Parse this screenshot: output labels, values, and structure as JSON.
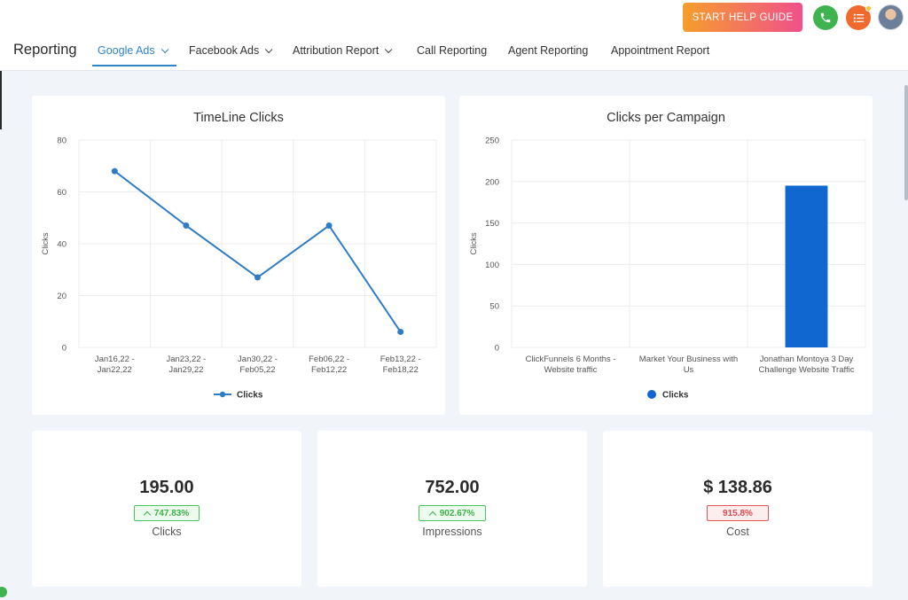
{
  "header": {
    "help_button_label": "START HELP GUIDE",
    "phone_icon": "phone-icon",
    "list_icon": "list-icon",
    "accent_gradient": [
      "#f59e2c",
      "#f0508a"
    ]
  },
  "nav": {
    "title": "Reporting",
    "tabs": [
      {
        "label": "Google Ads",
        "dropdown": true,
        "active": true
      },
      {
        "label": "Facebook Ads",
        "dropdown": true,
        "active": false
      },
      {
        "label": "Attribution Report",
        "dropdown": true,
        "active": false
      },
      {
        "label": "Call Reporting",
        "dropdown": false,
        "active": false
      },
      {
        "label": "Agent Reporting",
        "dropdown": false,
        "active": false
      },
      {
        "label": "Appointment Report",
        "dropdown": false,
        "active": false
      }
    ],
    "accent_color": "#2f84c8"
  },
  "chart_data": [
    {
      "type": "line",
      "title": "TimeLine Clicks",
      "ylabel": "Clicks",
      "xlabel": "",
      "categories": [
        [
          "Jan16,22 -",
          "Jan22,22"
        ],
        [
          "Jan23,22 -",
          "Jan29,22"
        ],
        [
          "Jan30,22 -",
          "Feb05,22"
        ],
        [
          "Feb06,22 -",
          "Feb12,22"
        ],
        [
          "Feb13,22 -",
          "Feb18,22"
        ]
      ],
      "series": [
        {
          "name": "Clicks",
          "values": [
            68,
            47,
            27,
            47,
            6
          ]
        }
      ],
      "ylim": [
        0,
        80
      ],
      "yticks": [
        0,
        20,
        40,
        60,
        80
      ],
      "grid": true,
      "legend": "bottom-center",
      "color": "#2f7cc6"
    },
    {
      "type": "bar",
      "title": "Clicks per Campaign",
      "ylabel": "Clicks",
      "xlabel": "",
      "categories": [
        [
          "ClickFunnels 6 Months -",
          "Website traffic"
        ],
        [
          "Market Your Business with",
          "Us"
        ],
        [
          "Jonathan Montoya 3 Day",
          "Challenge Website Traffic"
        ]
      ],
      "series": [
        {
          "name": "Clicks",
          "values": [
            0,
            0,
            195
          ]
        }
      ],
      "ylim": [
        0,
        250
      ],
      "yticks": [
        0,
        50,
        100,
        150,
        200,
        250
      ],
      "grid": true,
      "legend": "bottom-center",
      "color": "#0f67cf"
    }
  ],
  "stats": [
    {
      "value": "195.00",
      "change": "747.83%",
      "direction": "up",
      "label": "Clicks"
    },
    {
      "value": "752.00",
      "change": "902.67%",
      "direction": "up",
      "label": "Impressions"
    },
    {
      "value": "$ 138.86",
      "change": "915.8%",
      "direction": "down",
      "label": "Cost"
    }
  ]
}
